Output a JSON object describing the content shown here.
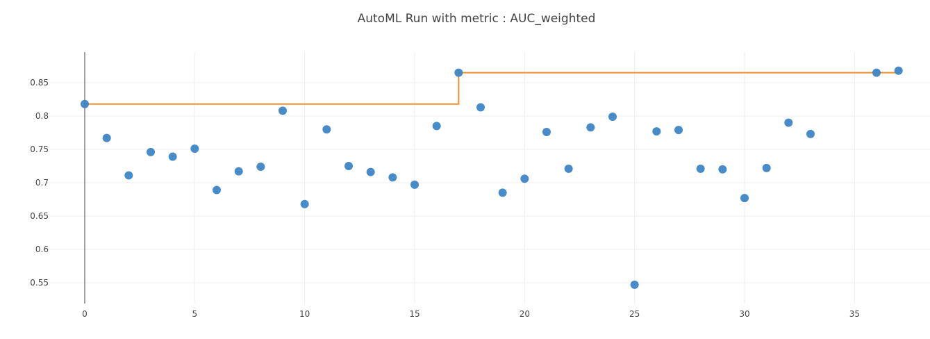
{
  "chart_data": {
    "type": "scatter",
    "title": "AutoML Run with metric : AUC_weighted",
    "xlabel": "",
    "ylabel": "",
    "xlim": [
      -2,
      38
    ],
    "ylim": [
      0.52,
      0.895
    ],
    "x_ticks": [
      0,
      5,
      10,
      15,
      20,
      25,
      30,
      35
    ],
    "y_ticks": [
      0.55,
      0.6,
      0.65,
      0.7,
      0.75,
      0.8,
      0.85
    ],
    "grid": true,
    "series": [
      {
        "type": "scatter",
        "color": "#3d85c6",
        "x": [
          0,
          1,
          2,
          3,
          4,
          5,
          6,
          7,
          8,
          9,
          10,
          11,
          12,
          13,
          14,
          15,
          16,
          17,
          18,
          19,
          20,
          21,
          22,
          23,
          24,
          25,
          26,
          27,
          28,
          29,
          30,
          31,
          32,
          33,
          36,
          37
        ],
        "y": [
          0.818,
          0.767,
          0.711,
          0.746,
          0.739,
          0.751,
          0.689,
          0.717,
          0.724,
          0.808,
          0.668,
          0.78,
          0.725,
          0.716,
          0.708,
          0.697,
          0.785,
          0.865,
          0.813,
          0.685,
          0.706,
          0.776,
          0.721,
          0.783,
          0.799,
          0.547,
          0.777,
          0.779,
          0.721,
          0.72,
          0.677,
          0.722,
          0.79,
          0.773,
          0.865,
          0.868
        ]
      },
      {
        "type": "step-line",
        "color": "#f28e2b",
        "x": [
          0,
          17,
          17,
          37
        ],
        "y": [
          0.818,
          0.818,
          0.865,
          0.865
        ]
      }
    ]
  }
}
